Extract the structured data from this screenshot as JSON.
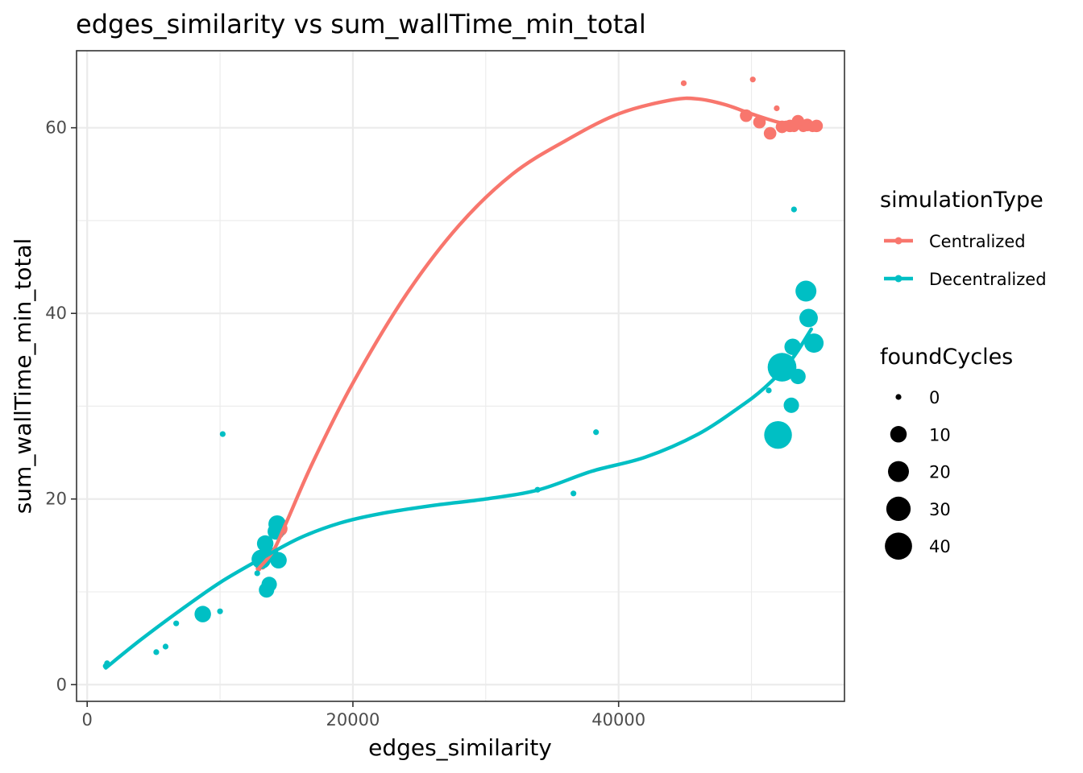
{
  "chart_data": {
    "type": "scatter",
    "title": "edges_similarity  vs  sum_wallTime_min_total",
    "xlabel": "edges_similarity",
    "ylabel": "sum_wallTime_min_total",
    "xlim": [
      -800,
      57000
    ],
    "ylim": [
      -1.8,
      68.3
    ],
    "x_ticks": [
      0,
      20000,
      40000
    ],
    "y_ticks": [
      0,
      20,
      40,
      60
    ],
    "grid": true,
    "legend_position": "right",
    "color_legend": {
      "title": "simulationType",
      "entries": [
        "Centralized",
        "Decentralized"
      ]
    },
    "size_legend": {
      "title": "foundCycles",
      "entries": [
        0,
        10,
        20,
        30,
        40
      ]
    },
    "colors": {
      "Centralized": "#F8766D",
      "Decentralized": "#00BFC4"
    },
    "series": [
      {
        "name": "Centralized",
        "color": "#F8766D",
        "points": [
          [
            12900,
            12.5,
            0
          ],
          [
            13050,
            12.9,
            0
          ],
          [
            13200,
            12.7,
            0
          ],
          [
            13400,
            13.0,
            0
          ],
          [
            14300,
            16.4,
            6
          ],
          [
            14500,
            16.8,
            8
          ],
          [
            44900,
            64.8,
            0
          ],
          [
            50100,
            65.2,
            0
          ],
          [
            49600,
            61.3,
            4
          ],
          [
            50600,
            60.6,
            4
          ],
          [
            51400,
            59.4,
            4
          ],
          [
            51900,
            62.1,
            0
          ],
          [
            52300,
            60.1,
            4
          ],
          [
            52600,
            60.2,
            2
          ],
          [
            52900,
            60.2,
            4
          ],
          [
            53200,
            60.1,
            2
          ],
          [
            53500,
            60.7,
            4
          ],
          [
            53700,
            60.3,
            0
          ],
          [
            53900,
            60.1,
            2
          ],
          [
            54200,
            60.3,
            4
          ],
          [
            54600,
            60.1,
            2
          ],
          [
            54900,
            60.2,
            4
          ]
        ],
        "trend": [
          [
            12900,
            12.5
          ],
          [
            14000,
            14.4
          ],
          [
            15000,
            17.5
          ],
          [
            17000,
            24.0
          ],
          [
            20000,
            32.5
          ],
          [
            24000,
            42.0
          ],
          [
            28000,
            49.5
          ],
          [
            32000,
            55.0
          ],
          [
            36000,
            58.6
          ],
          [
            40000,
            61.5
          ],
          [
            44000,
            63.0
          ],
          [
            46000,
            63.1
          ],
          [
            48000,
            62.5
          ],
          [
            50000,
            61.5
          ],
          [
            52000,
            60.6
          ],
          [
            54000,
            60.0
          ],
          [
            54900,
            59.8
          ]
        ]
      },
      {
        "name": "Decentralized",
        "color": "#00BFC4",
        "points": [
          [
            1400,
            2.0,
            0
          ],
          [
            1500,
            2.3,
            0
          ],
          [
            5200,
            3.5,
            0
          ],
          [
            5900,
            4.1,
            0
          ],
          [
            6700,
            6.6,
            0
          ],
          [
            8700,
            7.6,
            10
          ],
          [
            10000,
            7.9,
            0
          ],
          [
            10200,
            27.0,
            0
          ],
          [
            12800,
            12.0,
            0
          ],
          [
            13100,
            13.5,
            16
          ],
          [
            13300,
            13.7,
            10
          ],
          [
            13400,
            15.2,
            10
          ],
          [
            13500,
            10.2,
            8
          ],
          [
            13700,
            10.8,
            8
          ],
          [
            13900,
            14.0,
            6
          ],
          [
            14200,
            16.5,
            10
          ],
          [
            14300,
            17.3,
            12
          ],
          [
            14400,
            13.4,
            10
          ],
          [
            33900,
            21.0,
            0
          ],
          [
            36600,
            20.6,
            0
          ],
          [
            38300,
            27.2,
            0
          ],
          [
            51300,
            31.7,
            0
          ],
          [
            51500,
            26.9,
            4
          ],
          [
            52000,
            26.9,
            42
          ],
          [
            52300,
            34.2,
            46
          ],
          [
            53000,
            30.1,
            8
          ],
          [
            53100,
            36.4,
            10
          ],
          [
            53200,
            51.2,
            0
          ],
          [
            53500,
            33.2,
            8
          ],
          [
            54100,
            42.4,
            20
          ],
          [
            54300,
            39.5,
            14
          ],
          [
            54700,
            36.8,
            16
          ]
        ],
        "trend": [
          [
            1400,
            1.8
          ],
          [
            4000,
            4.8
          ],
          [
            7000,
            8.0
          ],
          [
            10000,
            11.0
          ],
          [
            13000,
            13.5
          ],
          [
            16000,
            15.8
          ],
          [
            19000,
            17.4
          ],
          [
            22000,
            18.4
          ],
          [
            26000,
            19.3
          ],
          [
            30000,
            20.0
          ],
          [
            34000,
            21.0
          ],
          [
            38000,
            23.0
          ],
          [
            42000,
            24.5
          ],
          [
            46000,
            27.0
          ],
          [
            49000,
            29.8
          ],
          [
            51000,
            32.0
          ],
          [
            53000,
            35.0
          ],
          [
            54500,
            38.3
          ]
        ]
      }
    ]
  }
}
